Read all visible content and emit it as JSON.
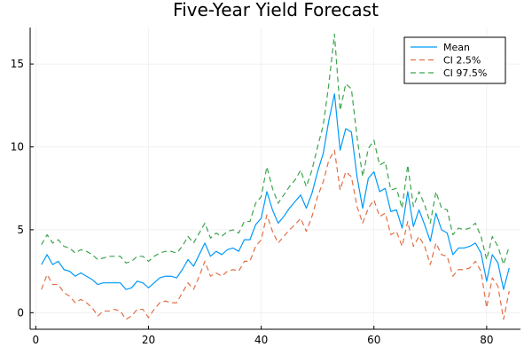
{
  "chart_data": {
    "type": "line",
    "title": "Five-Year Yield Forecast",
    "xlabel": "",
    "ylabel": "",
    "xlim": [
      -1,
      86
    ],
    "ylim": [
      -1,
      17.2
    ],
    "xticks": [
      0,
      20,
      40,
      60,
      80
    ],
    "yticks": [
      0,
      5,
      10,
      15
    ],
    "grid": true,
    "legend_position": "top-right",
    "x": [
      1,
      2,
      3,
      4,
      5,
      6,
      7,
      8,
      9,
      10,
      11,
      12,
      13,
      14,
      15,
      16,
      17,
      18,
      19,
      20,
      21,
      22,
      23,
      24,
      25,
      26,
      27,
      28,
      29,
      30,
      31,
      32,
      33,
      34,
      35,
      36,
      37,
      38,
      39,
      40,
      41,
      42,
      43,
      44,
      45,
      46,
      47,
      48,
      49,
      50,
      51,
      52,
      53,
      54,
      55,
      56,
      57,
      58,
      59,
      60,
      61,
      62,
      63,
      64,
      65,
      66,
      67,
      68,
      69,
      70,
      71,
      72,
      73,
      74,
      75,
      76,
      77,
      78,
      79,
      80,
      81,
      82,
      83,
      84
    ],
    "series": [
      {
        "name": "Mean",
        "color": "#009af9",
        "dash": "solid",
        "values": [
          2.9,
          3.5,
          2.9,
          3.1,
          2.6,
          2.5,
          2.2,
          2.4,
          2.2,
          2.0,
          1.7,
          1.8,
          1.8,
          1.8,
          1.8,
          1.4,
          1.5,
          1.9,
          1.8,
          1.5,
          1.8,
          2.1,
          2.2,
          2.2,
          2.1,
          2.6,
          3.2,
          2.8,
          3.5,
          4.2,
          3.4,
          3.7,
          3.5,
          3.8,
          3.9,
          3.7,
          4.4,
          4.4,
          5.3,
          5.7,
          7.3,
          6.2,
          5.4,
          5.8,
          6.3,
          6.7,
          7.1,
          6.3,
          7.2,
          8.5,
          9.6,
          11.6,
          13.2,
          9.8,
          11.1,
          10.9,
          8.2,
          6.3,
          8.1,
          8.5,
          7.3,
          7.5,
          6.1,
          6.2,
          5.1,
          7.3,
          5.2,
          6.2,
          5.3,
          4.3,
          6.0,
          5.0,
          4.8,
          3.5,
          3.9,
          3.9,
          4.0,
          4.2,
          3.6,
          1.9,
          3.5,
          3.0,
          1.4,
          2.7
        ]
      },
      {
        "name": "CI 2.5%",
        "color": "#e26f46",
        "dash": "dashed",
        "values": [
          1.4,
          2.3,
          1.7,
          1.7,
          1.2,
          1.0,
          0.6,
          0.8,
          0.6,
          0.3,
          -0.2,
          0.1,
          0.1,
          0.2,
          0.1,
          -0.4,
          -0.2,
          0.2,
          0.2,
          -0.3,
          0.2,
          0.6,
          0.7,
          0.6,
          0.6,
          1.2,
          1.8,
          1.4,
          2.2,
          3.1,
          2.2,
          2.4,
          2.2,
          2.5,
          2.6,
          2.5,
          3.1,
          3.1,
          4.0,
          4.4,
          5.9,
          4.9,
          4.2,
          4.6,
          5.0,
          5.3,
          5.7,
          4.9,
          5.8,
          7.0,
          7.9,
          9.2,
          9.8,
          7.4,
          8.5,
          8.2,
          6.4,
          5.4,
          6.3,
          6.8,
          5.8,
          6.0,
          4.7,
          4.9,
          4.0,
          5.5,
          4.0,
          4.6,
          4.0,
          2.9,
          4.2,
          3.5,
          3.4,
          2.2,
          2.6,
          2.6,
          2.7,
          3.1,
          2.5,
          0.3,
          2.1,
          1.6,
          -0.4,
          1.3
        ]
      },
      {
        "name": "CI 97.5%",
        "color": "#3da44d",
        "dash": "dashed",
        "values": [
          4.1,
          4.7,
          4.2,
          4.4,
          4.0,
          3.9,
          3.6,
          3.8,
          3.7,
          3.5,
          3.2,
          3.3,
          3.4,
          3.4,
          3.4,
          3.0,
          3.1,
          3.4,
          3.4,
          3.1,
          3.4,
          3.6,
          3.7,
          3.7,
          3.6,
          4.0,
          4.6,
          4.2,
          4.8,
          5.4,
          4.5,
          4.8,
          4.6,
          4.9,
          5.0,
          4.8,
          5.5,
          5.5,
          6.6,
          7.0,
          8.8,
          7.5,
          6.6,
          7.1,
          7.6,
          8.0,
          8.6,
          7.6,
          8.6,
          10.0,
          11.3,
          13.8,
          16.8,
          12.2,
          13.8,
          13.5,
          10.6,
          8.2,
          9.9,
          10.4,
          8.9,
          9.1,
          7.4,
          7.5,
          6.3,
          8.9,
          6.4,
          7.3,
          6.5,
          5.4,
          7.3,
          6.3,
          6.2,
          4.7,
          5.1,
          5.0,
          5.1,
          5.4,
          4.6,
          3.2,
          4.6,
          4.0,
          2.9,
          4.0
        ]
      }
    ]
  }
}
